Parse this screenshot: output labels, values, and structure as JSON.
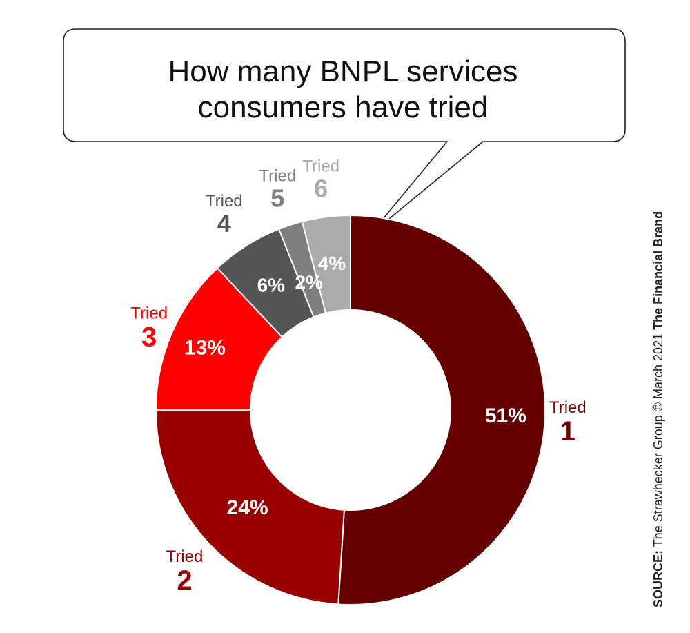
{
  "chart_data": {
    "type": "pie",
    "donut": true,
    "title_lines": [
      "How many BNPL services",
      "consumers have tried"
    ],
    "slices": [
      {
        "label_top": "Tried",
        "label_num": "1",
        "value": 51,
        "value_label": "51%",
        "color": "#650000",
        "label_color": "#7a0000"
      },
      {
        "label_top": "Tried",
        "label_num": "2",
        "value": 24,
        "value_label": "24%",
        "color": "#990000",
        "label_color": "#990000"
      },
      {
        "label_top": "Tried",
        "label_num": "3",
        "value": 13,
        "value_label": "13%",
        "color": "#ff0000",
        "label_color": "#ff0000"
      },
      {
        "label_top": "Tried",
        "label_num": "4",
        "value": 6,
        "value_label": "6%",
        "color": "#555555",
        "label_color": "#555555"
      },
      {
        "label_top": "Tried",
        "label_num": "5",
        "value": 2,
        "value_label": "2%",
        "color": "#7f7f7f",
        "label_color": "#7f7f7f"
      },
      {
        "label_top": "Tried",
        "label_num": "6",
        "value": 4,
        "value_label": "4%",
        "color": "#aaaaaa",
        "label_color": "#aaaaaa"
      }
    ]
  },
  "source": {
    "prefix": "SOURCE:",
    "text": " The Strawhecker Group © March 2021 ",
    "brand": "The Financial Brand"
  }
}
